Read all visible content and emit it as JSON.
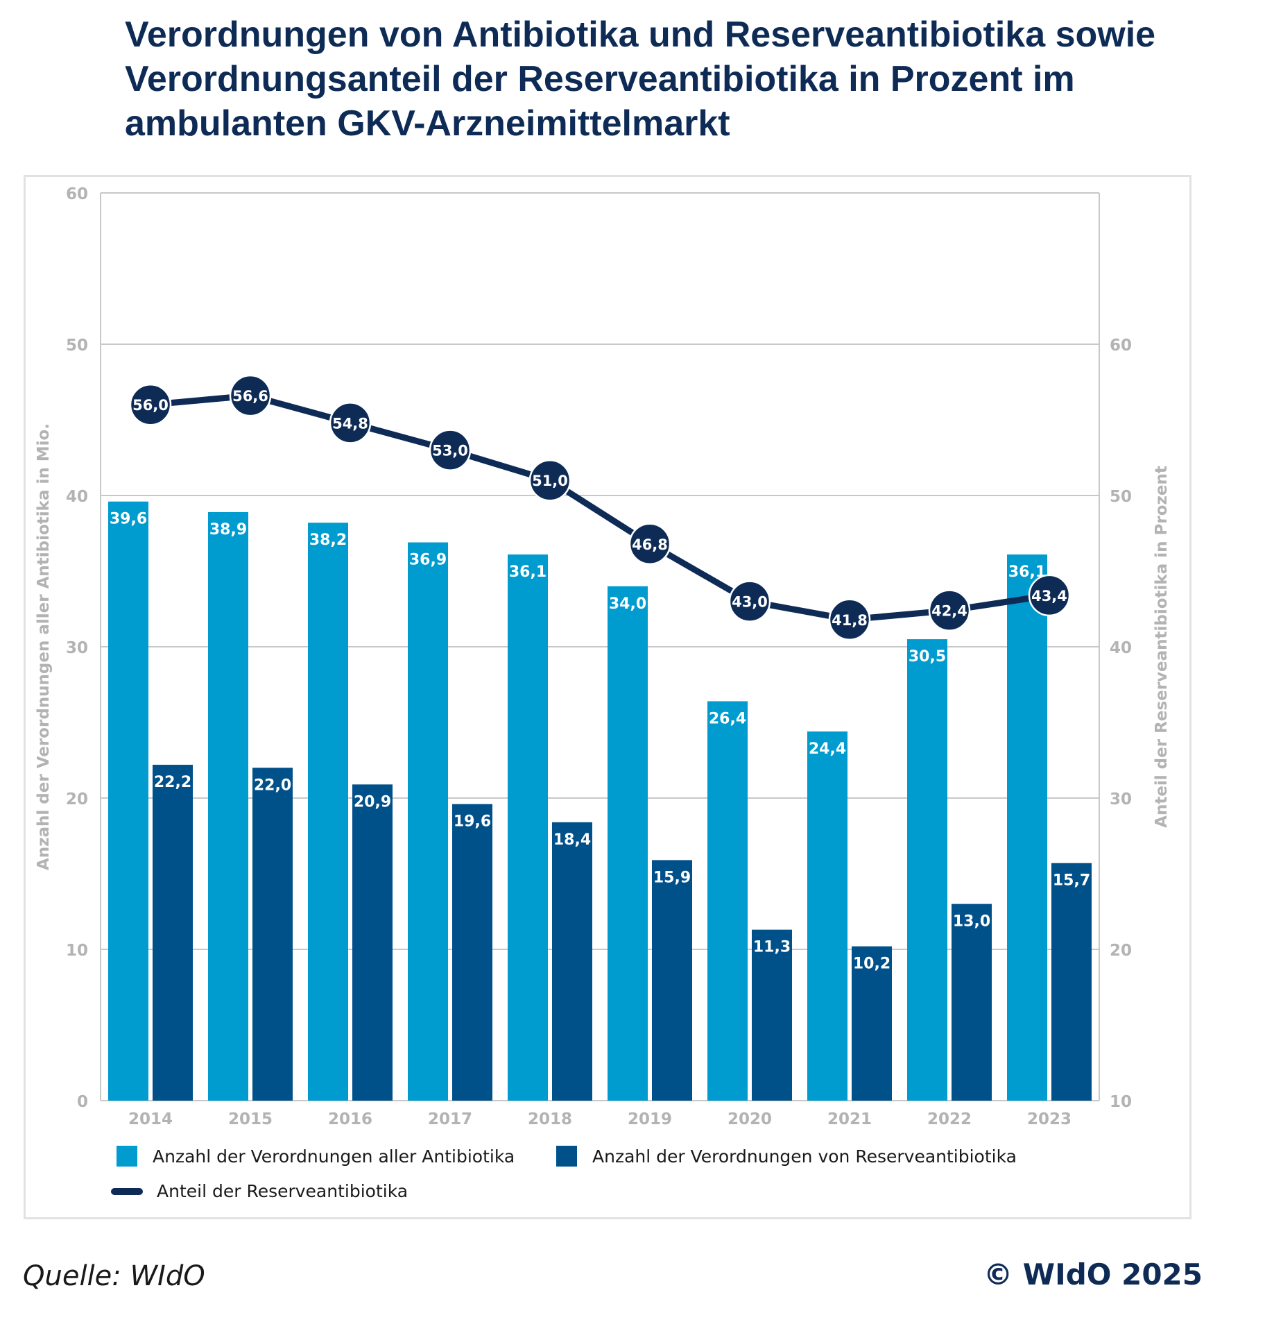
{
  "title": "Verordnungen von Antibiotika und Reserveantibiotika sowie Verordnungsanteil der Reserveantibiotika in Prozent im ambulanten GKV-Arzneimittelmarkt",
  "source": "Quelle: WIdO",
  "copyright": "© WIdO 2025",
  "colors": {
    "all_antibiotics": "#009bcf",
    "reserve_antibiotics": "#00508a",
    "share_line": "#0e2b56",
    "grid": "#c8c8c8",
    "axis_text": "#b3b3b3"
  },
  "legend": [
    {
      "label": "Anzahl der Verordnungen aller Antibiotika",
      "color": "#009bcf",
      "kind": "bar"
    },
    {
      "label": "Anzahl der Verordnungen von Reserveantibiotika",
      "color": "#00508a",
      "kind": "bar"
    },
    {
      "label": "Anteil der Reserveantibiotika",
      "color": "#0e2b56",
      "kind": "line"
    }
  ],
  "chart_data": {
    "type": "bar",
    "categories": [
      "2014",
      "2015",
      "2016",
      "2017",
      "2018",
      "2019",
      "2020",
      "2021",
      "2022",
      "2023"
    ],
    "series": [
      {
        "name": "Anzahl der Verordnungen aller Antibiotika",
        "type": "bar",
        "axis": "left",
        "values": [
          39.6,
          38.9,
          38.2,
          36.9,
          36.1,
          34.0,
          26.4,
          24.4,
          30.5,
          36.1
        ],
        "labels": [
          "39,6",
          "38,9",
          "38,2",
          "36,9",
          "36,1",
          "34,0",
          "26,4",
          "24,4",
          "30,5",
          "36,1"
        ]
      },
      {
        "name": "Anzahl der Verordnungen von Reserveantibiotika",
        "type": "bar",
        "axis": "left",
        "values": [
          22.2,
          22.0,
          20.9,
          19.6,
          18.4,
          15.9,
          11.3,
          10.2,
          13.0,
          15.7
        ],
        "labels": [
          "22,2",
          "22,0",
          "20,9",
          "19,6",
          "18,4",
          "15,9",
          "11,3",
          "10,2",
          "13,0",
          "15,7"
        ]
      },
      {
        "name": "Anteil der Reserveantibiotika",
        "type": "line",
        "axis": "right",
        "values": [
          56.0,
          56.6,
          54.8,
          53.0,
          51.0,
          46.8,
          43.0,
          41.8,
          42.4,
          43.4
        ],
        "labels": [
          "56,0",
          "56,6",
          "54,8",
          "53,0",
          "51,0",
          "46,8",
          "43,0",
          "41,8",
          "42,4",
          "43,4"
        ]
      }
    ],
    "ylabel": "Anzahl der Verordnungen aller Antibiotika in Mio.",
    "ylim": [
      0,
      60
    ],
    "yticks": [
      "0",
      "10",
      "20",
      "30",
      "40",
      "50",
      "60"
    ],
    "y2label": "Anteil der Reserveantibiotika in Prozent",
    "y2lim": [
      10,
      70
    ],
    "y2ticks": [
      "10",
      "20",
      "30",
      "40",
      "50",
      "60"
    ],
    "grid": true,
    "legend_position": "bottom"
  }
}
